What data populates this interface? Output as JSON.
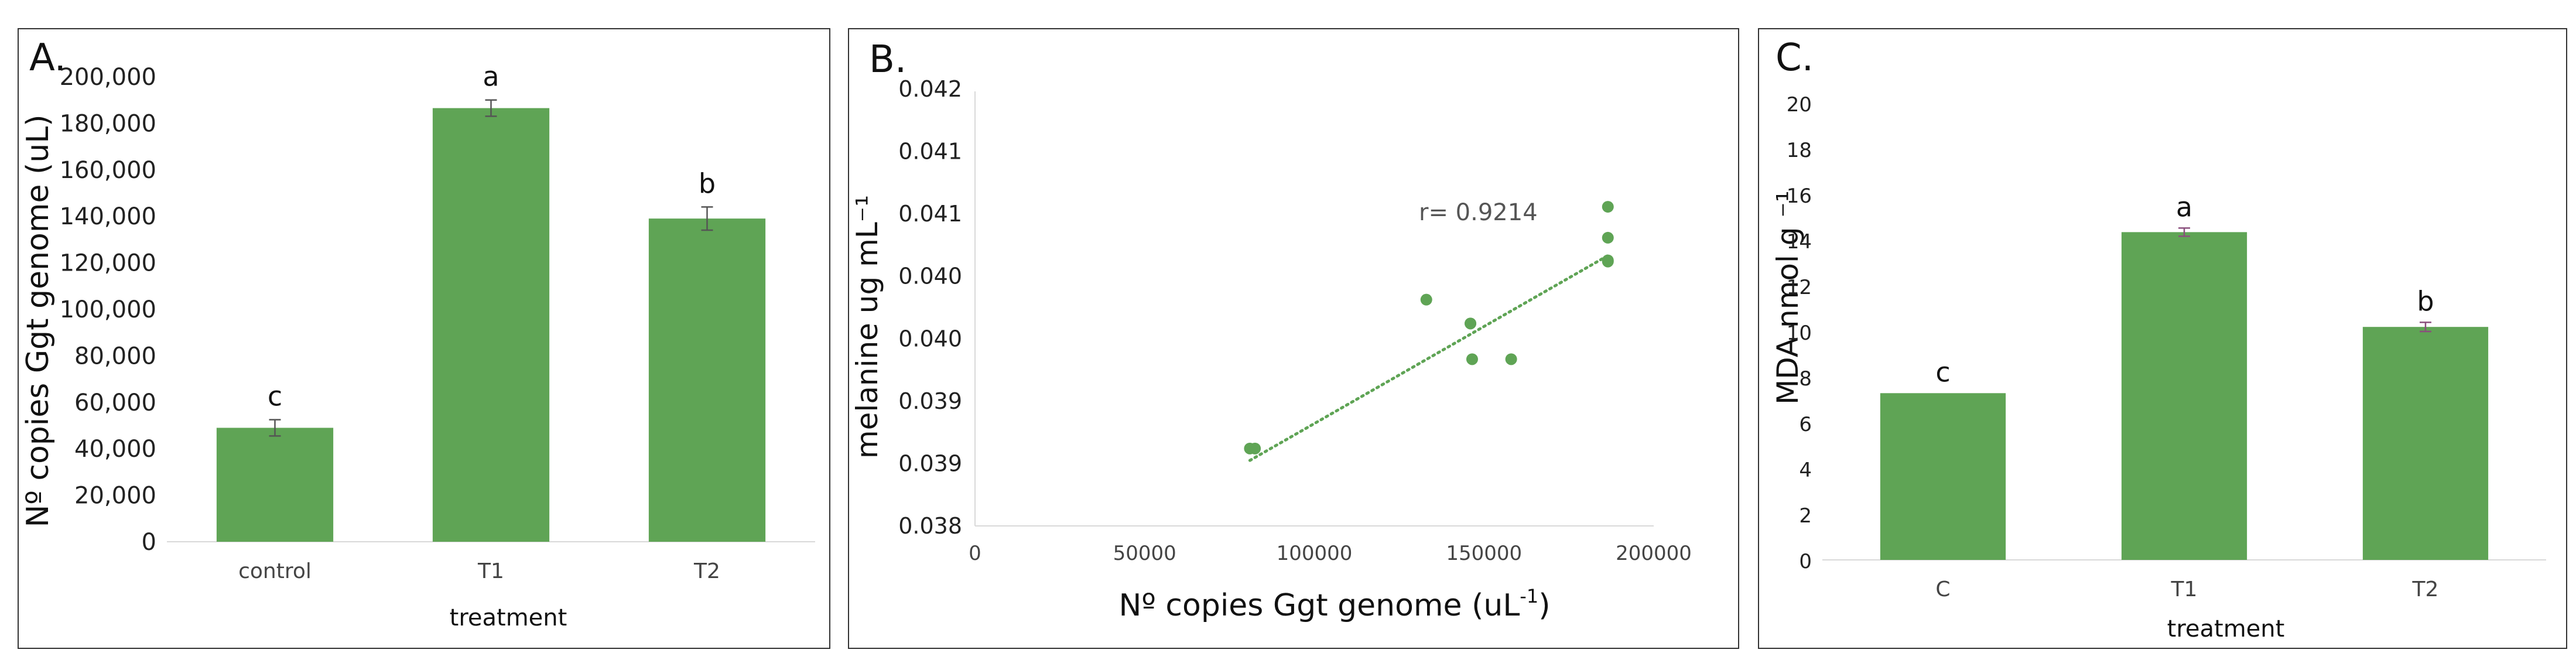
{
  "chart_data": [
    {
      "type": "bar",
      "panel_label": "A.",
      "categories": [
        "control",
        "T1",
        "T2"
      ],
      "values": [
        49000,
        186500,
        139000
      ],
      "errors": [
        3500,
        3500,
        5000
      ],
      "letters": [
        "c",
        "a",
        "b"
      ],
      "xlabel": "treatment",
      "ylabel": "Nº copies Ggt genome (uL)",
      "ylim": [
        0,
        200000
      ],
      "yticks": [
        "0",
        "20,000",
        "40,000",
        "60,000",
        "80,000",
        "100,000",
        "120,000",
        "140,000",
        "160,000",
        "180,000",
        "200,000"
      ],
      "bar_color": "#5fa455",
      "grid": false
    },
    {
      "type": "scatter",
      "panel_label": "B.",
      "x": [
        81000,
        82500,
        133000,
        146000,
        146500,
        146000,
        158000,
        186500,
        186500,
        186500,
        186500
      ],
      "y": [
        0.03865,
        0.03865,
        0.0399,
        0.0397,
        0.0394,
        0.0397,
        0.0394,
        0.04068,
        0.04042,
        0.04022,
        0.04023
      ],
      "trendline": {
        "x": [
          81000,
          186500
        ],
        "y": [
          0.03855,
          0.04027
        ],
        "style": "dotted"
      },
      "annotation": "r= 0.9214",
      "xlabel_main": "Nº copies Ggt genome (uL",
      "xlabel_sup": "-1",
      "xlabel_end": ")",
      "ylabel": "melanine ug mL⁻¹",
      "xlim": [
        0,
        200000
      ],
      "ylim": [
        0.038,
        0.0416
      ],
      "xticks": [
        "0",
        "50000",
        "100000",
        "150000",
        "200000"
      ],
      "yticks": [
        "0.038",
        "0.039",
        "0.039",
        "0.040",
        "0.040",
        "0.041",
        "0.041",
        "0.042"
      ],
      "marker_color": "#5fa455",
      "grid": false
    },
    {
      "type": "bar",
      "panel_label": "C.",
      "categories": [
        "C",
        "T1",
        "T2"
      ],
      "values": [
        7.3,
        14.35,
        10.2
      ],
      "errors": [
        0,
        0.18,
        0.2
      ],
      "letters": [
        "c",
        "a",
        "b"
      ],
      "xlabel": "treatment",
      "ylabel": "MDA nmol g  ⁻¹",
      "ylim": [
        0,
        20
      ],
      "yticks": [
        "0",
        "2",
        "4",
        "6",
        "8",
        "10",
        "12",
        "14",
        "16",
        "18",
        "20"
      ],
      "bar_color": "#5fa455",
      "grid": false
    }
  ]
}
